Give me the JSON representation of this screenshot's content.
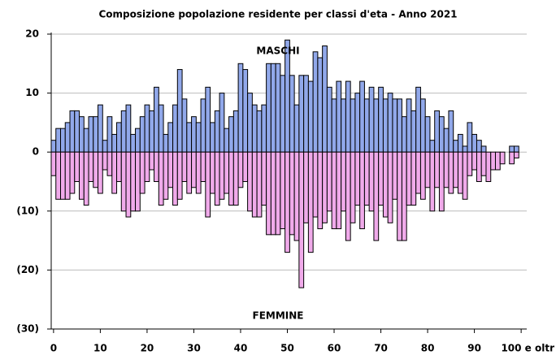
{
  "chart_data": {
    "type": "bar",
    "title": "Composizione popolazione residente per classi d'eta - Anno 2021",
    "categories": [
      "0",
      null,
      null,
      null,
      null,
      null,
      null,
      null,
      null,
      null,
      "10",
      null,
      null,
      null,
      null,
      null,
      null,
      null,
      null,
      null,
      "20",
      null,
      null,
      null,
      null,
      null,
      null,
      null,
      null,
      null,
      "30",
      null,
      null,
      null,
      null,
      null,
      null,
      null,
      null,
      null,
      "40",
      null,
      null,
      null,
      null,
      null,
      null,
      null,
      null,
      null,
      "50",
      null,
      null,
      null,
      null,
      null,
      null,
      null,
      null,
      null,
      "60",
      null,
      null,
      null,
      null,
      null,
      null,
      null,
      null,
      null,
      "70",
      null,
      null,
      null,
      null,
      null,
      null,
      null,
      null,
      null,
      "80",
      null,
      null,
      null,
      null,
      null,
      null,
      null,
      null,
      null,
      "90",
      null,
      null,
      null,
      null,
      null,
      null,
      null,
      null,
      null,
      "100 e oltr"
    ],
    "series": [
      {
        "name": "MASCHI",
        "color": "#91a8ea",
        "values": [
          2,
          4,
          4,
          5,
          7,
          7,
          6,
          4,
          6,
          6,
          8,
          2,
          6,
          3,
          5,
          7,
          8,
          3,
          4,
          6,
          8,
          7,
          11,
          8,
          3,
          5,
          8,
          14,
          9,
          5,
          6,
          5,
          9,
          11,
          5,
          7,
          10,
          4,
          6,
          7,
          15,
          14,
          10,
          8,
          7,
          8,
          15,
          15,
          15,
          13,
          19,
          13,
          8,
          13,
          13,
          12,
          17,
          16,
          18,
          11,
          9,
          12,
          9,
          12,
          9,
          10,
          12,
          9,
          11,
          9,
          11,
          9,
          10,
          9,
          9,
          6,
          9,
          7,
          11,
          9,
          6,
          2,
          7,
          6,
          4,
          7,
          2,
          3,
          1,
          5,
          3,
          2,
          1,
          0,
          0,
          0,
          0,
          0,
          1,
          1,
          0
        ]
      },
      {
        "name": "FEMMINE",
        "color": "#f0aaea",
        "values": [
          -4,
          -8,
          -8,
          -8,
          -7,
          -5,
          -8,
          -9,
          -5,
          -6,
          -7,
          -3,
          -4,
          -7,
          -5,
          -10,
          -11,
          -10,
          -10,
          -7,
          -5,
          -3,
          -5,
          -9,
          -8,
          -6,
          -9,
          -8,
          -5,
          -7,
          -6,
          -7,
          -5,
          -11,
          -7,
          -9,
          -8,
          -7,
          -9,
          -9,
          -6,
          -5,
          -10,
          -11,
          -11,
          -9,
          -14,
          -14,
          -14,
          -13,
          -17,
          -14,
          -15,
          -23,
          -12,
          -17,
          -11,
          -13,
          -12,
          -10,
          -13,
          -13,
          -10,
          -15,
          -12,
          -9,
          -13,
          -9,
          -10,
          -15,
          -9,
          -11,
          -12,
          -8,
          -15,
          -15,
          -9,
          -9,
          -7,
          -8,
          -6,
          -10,
          -6,
          -10,
          -6,
          -7,
          -6,
          -7,
          -8,
          -4,
          -3,
          -5,
          -4,
          -5,
          -3,
          -3,
          -2,
          0,
          -2,
          -1,
          0
        ]
      }
    ],
    "ylim": [
      -30,
      20
    ],
    "yticks": [
      20,
      10,
      0,
      {
        "value": -10,
        "label": "(10)"
      },
      {
        "value": -20,
        "label": "(20)"
      },
      {
        "value": -30,
        "label": "(30)"
      }
    ],
    "grid": true
  }
}
